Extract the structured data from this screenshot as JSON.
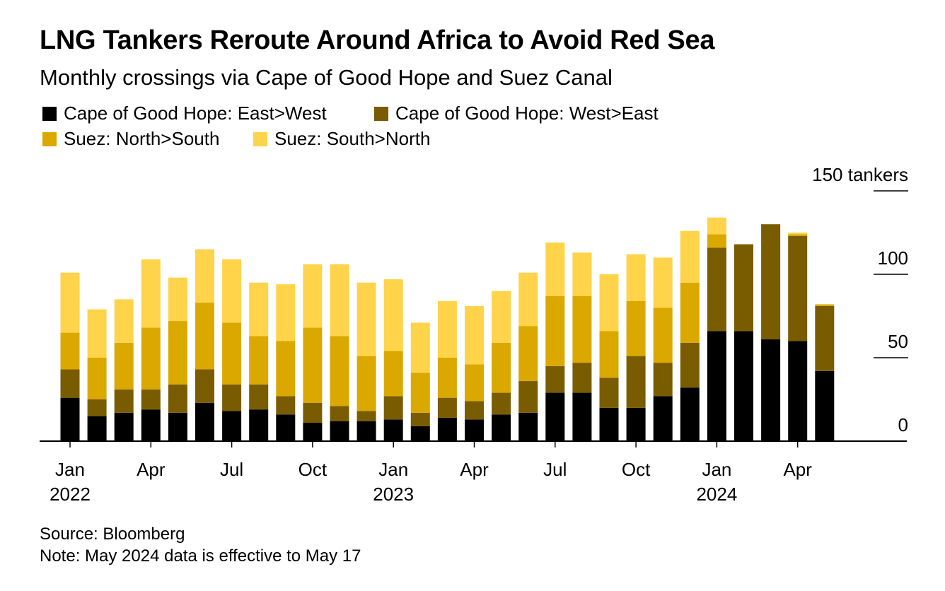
{
  "title": "LNG Tankers Reroute Around Africa to Avoid Red Sea",
  "subtitle": "Monthly crossings via Cape of Good Hope and Suez Canal",
  "source": "Source: Bloomberg",
  "note": "Note: May 2024 data is effective to May 17",
  "chart_data": {
    "type": "bar",
    "stacked": true,
    "y_unit_label": "150 tankers",
    "ylim": [
      0,
      150
    ],
    "yticks": [
      "0",
      "50",
      "100",
      "150 tankers"
    ],
    "ytick_values": [
      0,
      50,
      100,
      150
    ],
    "x_tick_labels": [
      {
        "index": 0,
        "month": "Jan",
        "year": "2022"
      },
      {
        "index": 3,
        "month": "Apr",
        "year": ""
      },
      {
        "index": 6,
        "month": "Jul",
        "year": ""
      },
      {
        "index": 9,
        "month": "Oct",
        "year": ""
      },
      {
        "index": 12,
        "month": "Jan",
        "year": "2023"
      },
      {
        "index": 15,
        "month": "Apr",
        "year": ""
      },
      {
        "index": 18,
        "month": "Jul",
        "year": ""
      },
      {
        "index": 21,
        "month": "Oct",
        "year": ""
      },
      {
        "index": 24,
        "month": "Jan",
        "year": "2024"
      },
      {
        "index": 27,
        "month": "Apr",
        "year": ""
      }
    ],
    "categories": [
      "2022-01",
      "2022-02",
      "2022-03",
      "2022-04",
      "2022-05",
      "2022-06",
      "2022-07",
      "2022-08",
      "2022-09",
      "2022-10",
      "2022-11",
      "2022-12",
      "2023-01",
      "2023-02",
      "2023-03",
      "2023-04",
      "2023-05",
      "2023-06",
      "2023-07",
      "2023-08",
      "2023-09",
      "2023-10",
      "2023-11",
      "2023-12",
      "2024-01",
      "2024-02",
      "2024-03",
      "2024-04",
      "2024-05"
    ],
    "series": [
      {
        "name": "Cape of Good Hope: East>West",
        "color": "#000000",
        "values": [
          26,
          15,
          17,
          19,
          17,
          23,
          18,
          19,
          16,
          11,
          12,
          12,
          13,
          9,
          14,
          13,
          16,
          17,
          29,
          29,
          20,
          20,
          27,
          32,
          66,
          66,
          61,
          60,
          42
        ]
      },
      {
        "name": "Cape of Good Hope: West>East",
        "color": "#7a5c00",
        "values": [
          17,
          10,
          14,
          12,
          17,
          20,
          16,
          15,
          11,
          12,
          9,
          6,
          14,
          8,
          12,
          11,
          13,
          19,
          16,
          18,
          18,
          31,
          20,
          27,
          50,
          52,
          69,
          63,
          39
        ]
      },
      {
        "name": "Suez: North>South",
        "color": "#dba800",
        "values": [
          22,
          25,
          28,
          37,
          38,
          40,
          37,
          29,
          33,
          45,
          42,
          33,
          27,
          24,
          24,
          22,
          30,
          33,
          42,
          40,
          28,
          33,
          33,
          36,
          8,
          0,
          0,
          1,
          1
        ]
      },
      {
        "name": "Suez: South>North",
        "color": "#ffd34a",
        "values": [
          36,
          29,
          26,
          41,
          26,
          32,
          38,
          32,
          34,
          38,
          43,
          44,
          43,
          30,
          34,
          35,
          31,
          32,
          32,
          26,
          34,
          28,
          30,
          31,
          10,
          0,
          0,
          1,
          0
        ]
      }
    ]
  }
}
